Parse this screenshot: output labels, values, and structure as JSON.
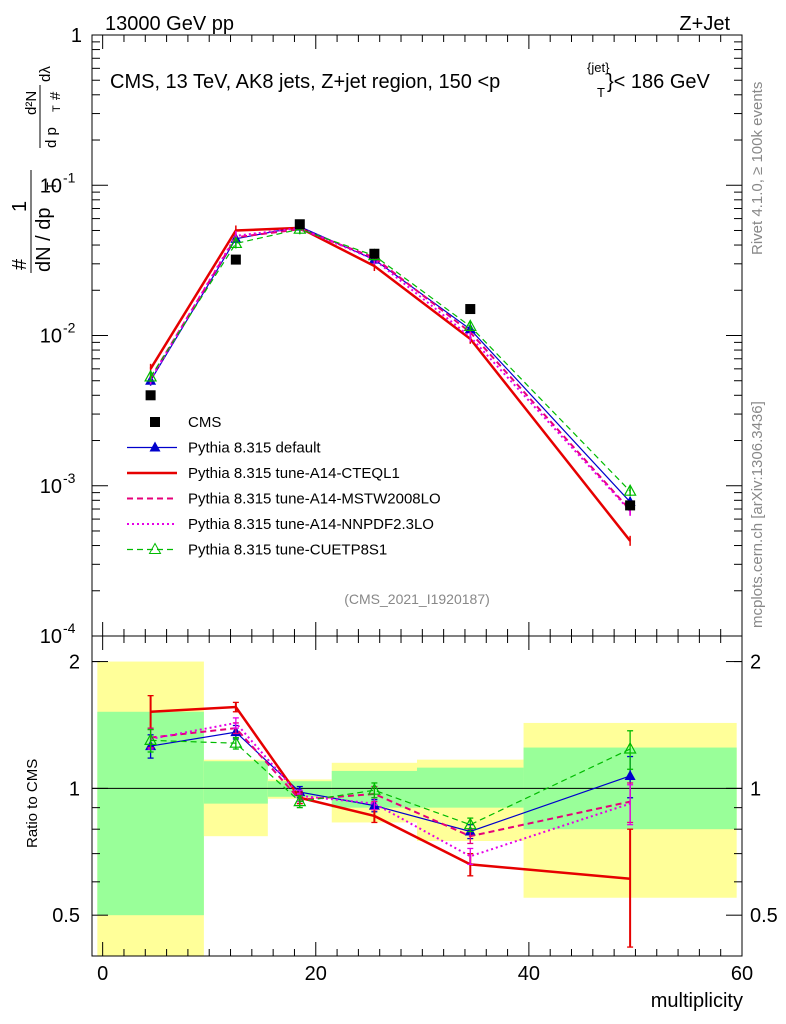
{
  "header": {
    "left": "13000 GeV pp",
    "right": "Z+Jet"
  },
  "side_text": {
    "rivet": "Rivet 4.1.0, ≥ 100k events",
    "mcplots": "mcplots.cern.ch [arXiv:1306.3436]"
  },
  "main_panel": {
    "title": "CMS, 13 TeV, AK8 jets, Z+jet region, 150 <p_T^{jet}< 186 GeV",
    "title_parts": {
      "pre": "CMS, 13 TeV, AK8 jets, Z+jet region, 150 <p",
      "sup": "{jet}",
      "sub": "T",
      "post": "}< 186 GeV"
    },
    "ylabel": "1/dN/dp_T  d²N/dp_T dλ",
    "ylabel_parts": {
      "one": "1",
      "num": "d²N",
      "den": "dN / dp",
      "den_sub": "T",
      "num2": "d p",
      "num2_sub": "T",
      "lam": "dλ",
      "hash": "#"
    },
    "analysis_id": "(CMS_2021_I1920187)",
    "yticks": [
      "1",
      "10^-1",
      "10^-2",
      "10^-3",
      "10^-4"
    ]
  },
  "ratio_panel": {
    "ylabel": "Ratio to CMS",
    "yticks": [
      "0.5",
      "1",
      "2"
    ],
    "xlabel": "multiplicity",
    "xticks": [
      "0",
      "20",
      "40",
      "60"
    ]
  },
  "legend": [
    {
      "label": "CMS",
      "color": "#000000",
      "style": "square"
    },
    {
      "label": "Pythia 8.315 default",
      "color": "#0000cc",
      "style": "solid-triangle"
    },
    {
      "label": "Pythia 8.315 tune-A14-CTEQL1",
      "color": "#e60000",
      "style": "solid-thick"
    },
    {
      "label": "Pythia 8.315 tune-A14-MSTW2008LO",
      "color": "#e6007a",
      "style": "dashed"
    },
    {
      "label": "Pythia 8.315 tune-A14-NNPDF2.3LO",
      "color": "#e600e6",
      "style": "dotted"
    },
    {
      "label": "Pythia 8.315 tune-CUETP8S1",
      "color": "#00bb00",
      "style": "dashed-open-triangle"
    }
  ],
  "chart_data": {
    "type": "line",
    "xlabel": "multiplicity",
    "ylabel": "1/dN/dp_T d²N/dp_T dλ",
    "xlim": [
      -1,
      60
    ],
    "ylim": [
      0.0001,
      1
    ],
    "yscale": "log",
    "ratio_ylim": [
      0.4,
      2.3
    ],
    "cms": {
      "x": [
        4.5,
        12.5,
        18.5,
        25.5,
        34.5,
        49.5
      ],
      "y": [
        0.004,
        0.032,
        0.055,
        0.035,
        0.015,
        0.00074
      ],
      "bin_edges": [
        -0.5,
        9.5,
        15.5,
        21.5,
        29.5,
        39.5,
        59.5
      ],
      "band_inner": [
        [
          0.5,
          1.52
        ],
        [
          0.92,
          1.16
        ],
        [
          0.955,
          1.04
        ],
        [
          0.9,
          1.1
        ],
        [
          0.9,
          1.12
        ],
        [
          0.8,
          1.25
        ]
      ],
      "band_outer": [
        [
          0.3,
          2.0
        ],
        [
          0.77,
          1.17
        ],
        [
          0.945,
          1.05
        ],
        [
          0.83,
          1.15
        ],
        [
          0.75,
          1.17
        ],
        [
          0.55,
          1.43
        ]
      ]
    },
    "series": [
      {
        "name": "Pythia 8.315 default",
        "x": [
          4.5,
          12.5,
          18.5,
          25.5,
          34.5,
          49.5
        ],
        "y": [
          0.005,
          0.044,
          0.053,
          0.032,
          0.011,
          0.00078
        ],
        "ratio": [
          1.26,
          1.36,
          0.98,
          0.91,
          0.79,
          1.07
        ],
        "ratio_err": [
          0.08,
          0.05,
          0.03,
          0.03,
          0.03,
          0.12
        ]
      },
      {
        "name": "Pythia 8.315 tune-A14-CTEQL1",
        "x": [
          4.5,
          12.5,
          18.5,
          25.5,
          34.5,
          49.5
        ],
        "y": [
          0.006,
          0.05,
          0.052,
          0.029,
          0.0095,
          0.00043
        ],
        "ratio": [
          1.52,
          1.56,
          0.95,
          0.86,
          0.66,
          0.61
        ],
        "ratio_err": [
          0.14,
          0.04,
          0.03,
          0.03,
          0.04,
          0.19
        ]
      },
      {
        "name": "Pythia 8.315 tune-A14-MSTW2008LO",
        "x": [
          4.5,
          12.5,
          18.5,
          25.5,
          34.5,
          49.5
        ],
        "y": [
          0.0052,
          0.045,
          0.051,
          0.033,
          0.0105,
          0.00069
        ],
        "ratio": [
          1.32,
          1.39,
          0.94,
          0.97,
          0.77,
          0.93
        ],
        "ratio_err": [
          0.07,
          0.04,
          0.03,
          0.04,
          0.03,
          0.1
        ]
      },
      {
        "name": "Pythia 8.315 tune-A14-NNPDF2.3LO",
        "x": [
          4.5,
          12.5,
          18.5,
          25.5,
          34.5,
          49.5
        ],
        "y": [
          0.0051,
          0.046,
          0.052,
          0.032,
          0.0098,
          0.00068
        ],
        "ratio": [
          1.31,
          1.43,
          0.96,
          0.92,
          0.69,
          0.92
        ],
        "ratio_err": [
          0.07,
          0.04,
          0.03,
          0.03,
          0.03,
          0.1
        ]
      },
      {
        "name": "Pythia 8.315 tune-CUETP8S1",
        "x": [
          4.5,
          12.5,
          18.5,
          25.5,
          34.5,
          49.5
        ],
        "y": [
          0.0053,
          0.041,
          0.051,
          0.034,
          0.0115,
          0.00092
        ],
        "ratio": [
          1.3,
          1.28,
          0.93,
          0.99,
          0.82,
          1.24
        ],
        "ratio_err": [
          0.08,
          0.04,
          0.03,
          0.04,
          0.03,
          0.13
        ]
      }
    ]
  }
}
